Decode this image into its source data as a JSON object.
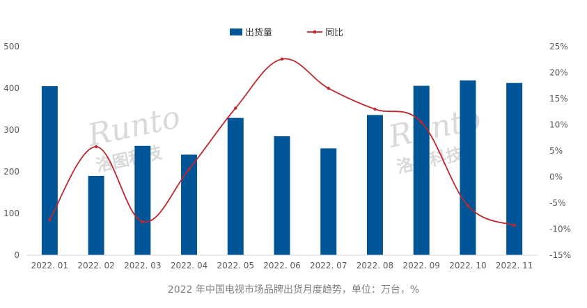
{
  "chart_data": {
    "type": "bar",
    "categories": [
      "2022. 01",
      "2022. 02",
      "2022. 03",
      "2022. 04",
      "2022. 05",
      "2022. 06",
      "2022. 07",
      "2022. 08",
      "2022. 09",
      "2022. 10",
      "2022. 11"
    ],
    "series": [
      {
        "name": "出货量",
        "type": "bar",
        "axis": "left",
        "values": [
          405,
          190,
          262,
          241,
          329,
          285,
          256,
          336,
          406,
          419,
          413
        ]
      },
      {
        "name": "同比",
        "type": "line",
        "axis": "right",
        "values": [
          -8.2,
          5.8,
          -8.6,
          1.5,
          13.2,
          22.6,
          17.0,
          13.0,
          10.5,
          -5.5,
          -9.3
        ]
      }
    ],
    "ylim": [
      0,
      500
    ],
    "yticks": [
      "0",
      "100",
      "200",
      "300",
      "400",
      "500"
    ],
    "y2lim": [
      -15,
      25
    ],
    "y2ticks": [
      "-15%",
      "-10%",
      "-5%",
      "0%",
      "5%",
      "10%",
      "15%",
      "20%",
      "25%"
    ],
    "legend_position": "top-center",
    "grid": false,
    "colors": {
      "bar": "#005597",
      "line": "#c0272d"
    }
  },
  "caption": "2022 年中国电视市场品牌出货月度趋势，单位：万台，%",
  "watermark": {
    "brand": "Runto",
    "cn": "洛图科技"
  }
}
